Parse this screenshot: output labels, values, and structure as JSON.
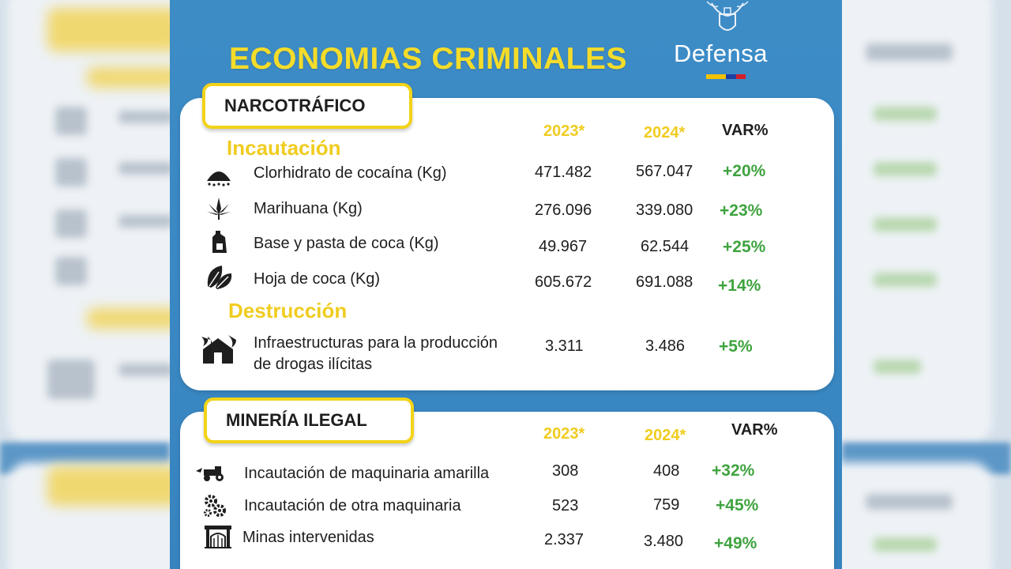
{
  "title": "ECONOMIAS CRIMINALES",
  "logo": {
    "text": "Defensa",
    "flag_colors": [
      "#f2c200",
      "#1f3fa0",
      "#d21f2b"
    ]
  },
  "colors": {
    "background": "#3a88c3",
    "accent": "#f0cc1f",
    "positive": "#3fa33f"
  },
  "narcotrafico": {
    "title": "NARCOTRÁFICO",
    "headers": {
      "y2023": "2023*",
      "y2024": "2024*",
      "var": "VAR%"
    },
    "sections": {
      "incautacion": "Incautación",
      "destruccion": "Destrucción"
    },
    "rows": [
      {
        "icon": "cocaine-pile-icon",
        "label": "Clorhidrato de cocaína (Kg)",
        "v2023": "471.482",
        "v2024": "567.047",
        "var": "+20%"
      },
      {
        "icon": "cannabis-leaf-icon",
        "label": "Marihuana (Kg)",
        "v2023": "276.096",
        "v2024": "339.080",
        "var": "+23%"
      },
      {
        "icon": "chemical-container-icon",
        "label": "Base y pasta de coca (Kg)",
        "v2023": "49.967",
        "v2024": "62.544",
        "var": "+25%"
      },
      {
        "icon": "coca-leaf-icon",
        "label": "Hoja de coca (Kg)",
        "v2023": "605.672",
        "v2024": "691.088",
        "var": "+14%"
      },
      {
        "icon": "burning-house-icon",
        "label_line1": "Infraestructuras para la producción",
        "label_line2": "de drogas ilícitas",
        "v2023": "3.311",
        "v2024": "3.486",
        "var": "+5%"
      }
    ]
  },
  "mineria": {
    "title": "MINERÍA ILEGAL",
    "headers": {
      "y2023": "2023*",
      "y2024": "2024*",
      "var": "VAR%"
    },
    "rows": [
      {
        "icon": "tractor-icon",
        "label": "Incautación de maquinaria amarilla",
        "v2023": "308",
        "v2024": "408",
        "var": "+32%"
      },
      {
        "icon": "gears-icon",
        "label": "Incautación de otra maquinaria",
        "v2023": "523",
        "v2024": "759",
        "var": "+45%"
      },
      {
        "icon": "mine-entrance-icon",
        "label": "Minas intervenidas",
        "v2023": "2.337",
        "v2024": "3.480",
        "var": "+49%"
      }
    ]
  }
}
